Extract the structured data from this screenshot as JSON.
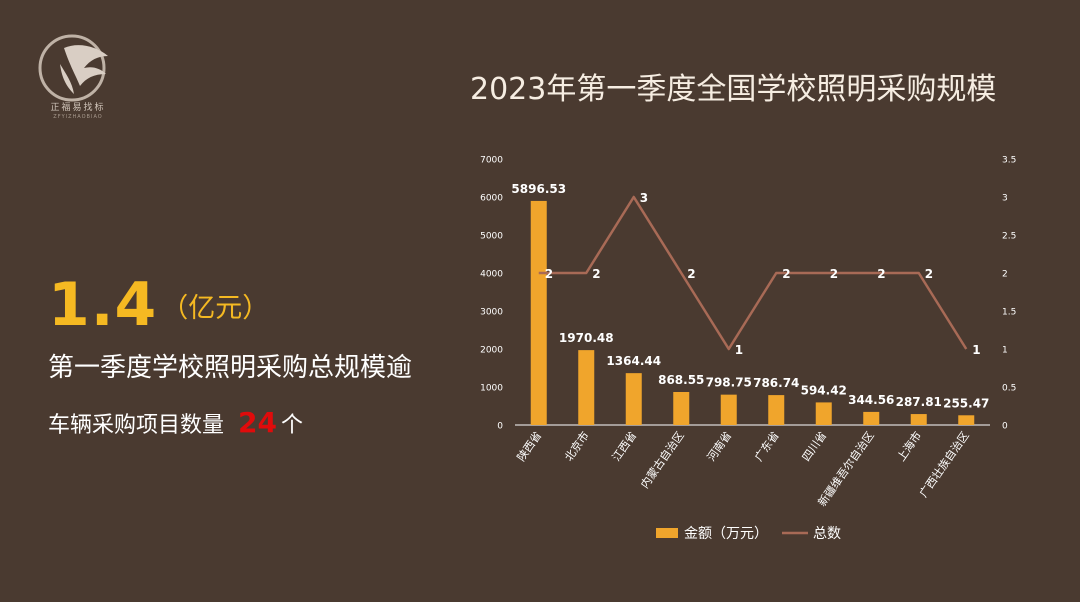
{
  "logo": {
    "text": "正福易找标",
    "subtext": "ZFYIZHAOBIAO"
  },
  "headline": {
    "value": "1.4",
    "unit": "（亿元）",
    "line1": "第一季度学校照明采购总规模逾",
    "line2_prefix": "车辆采购项目数量",
    "line2_count": "24",
    "line2_suffix": "个"
  },
  "colors": {
    "background": "#4a3a30",
    "bar": "#f0a52c",
    "line": "#a86a56",
    "highlight": "#f5b922",
    "count": "#e00b0b"
  },
  "chart_data": {
    "type": "bar",
    "title": "2023年第一季度全国学校照明采购规模",
    "categories": [
      "陕西省",
      "北京市",
      "江西省",
      "内蒙古自治区",
      "河南省",
      "广东省",
      "四川省",
      "新疆维吾尔自治区",
      "上海市",
      "广西壮族自治区"
    ],
    "series": [
      {
        "name": "金额（万元）",
        "type": "bar",
        "axis": "left",
        "values": [
          5896.53,
          1970.48,
          1364.44,
          868.55,
          798.75,
          786.74,
          594.42,
          344.56,
          287.81,
          255.47
        ],
        "labels": [
          "5896.53",
          "1970.48",
          "1364.44",
          "868.55",
          "798.75",
          "786.74",
          "594.42",
          "344.56",
          "287.81",
          "255.47"
        ]
      },
      {
        "name": "总数",
        "type": "line",
        "axis": "right",
        "values": [
          2,
          2,
          3,
          2,
          1,
          2,
          2,
          2,
          2,
          1
        ],
        "labels": [
          "2",
          "2",
          "3",
          "2",
          "1",
          "2",
          "2",
          "2",
          "2",
          "1"
        ]
      }
    ],
    "y_left": {
      "ylim": [
        0,
        7000
      ],
      "ticks": [
        "0",
        "1000",
        "2000",
        "3000",
        "4000",
        "5000",
        "6000",
        "7000"
      ]
    },
    "y_right": {
      "ylim": [
        0,
        3.5
      ],
      "ticks": [
        "0",
        "0.5",
        "1",
        "1.5",
        "2",
        "2.5",
        "3",
        "3.5"
      ]
    },
    "grid": false,
    "legend": "bottom"
  }
}
